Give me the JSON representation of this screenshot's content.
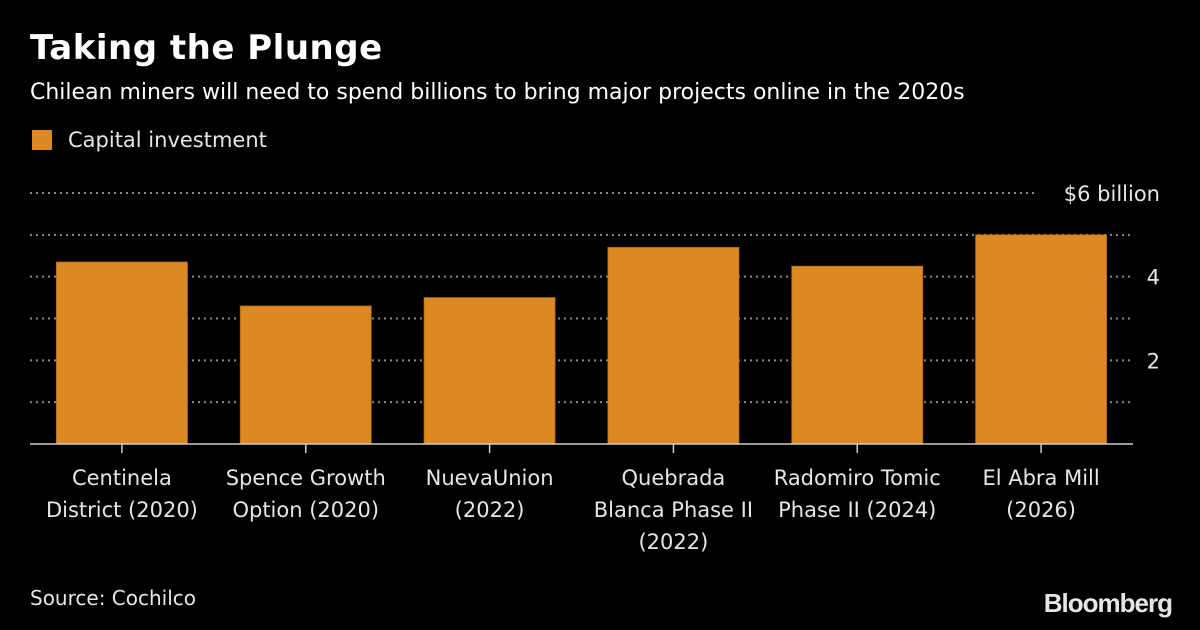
{
  "header": {
    "title": "Taking the Plunge",
    "subtitle": "Chilean miners will need to spend billions to bring major projects online in the 2020s"
  },
  "footer": {
    "source": "Source: Cochilco",
    "logo": "Bloomberg"
  },
  "chart_data": {
    "type": "bar",
    "title": "Taking the Plunge",
    "subtitle": "Chilean miners will need to spend billions to bring major projects online in the 2020s",
    "xlabel": "",
    "ylabel": "$ billion",
    "ylim": [
      0,
      6
    ],
    "yticks": [
      0,
      1,
      2,
      3,
      4,
      5,
      6
    ],
    "ytick_labels": [
      {
        "value": 2,
        "label": "2"
      },
      {
        "value": 4,
        "label": "4"
      },
      {
        "value": 6,
        "label": "$6 billion"
      }
    ],
    "grid": true,
    "legend": {
      "placement": "top-left",
      "entries": [
        {
          "name": "Capital investment",
          "color": "#dc8924"
        }
      ]
    },
    "categories": [
      [
        "Centinela",
        "District (2020)"
      ],
      [
        "Spence Growth",
        "Option (2020)"
      ],
      [
        "NuevaUnion",
        "(2022)"
      ],
      [
        "Quebrada",
        "Blanca Phase II",
        "(2022)"
      ],
      [
        "Radomiro Tomic",
        "Phase II (2024)"
      ],
      [
        "El Abra Mill",
        "(2026)"
      ]
    ],
    "series": [
      {
        "name": "Capital investment",
        "color": "#dc8924",
        "values": [
          4.35,
          3.3,
          3.5,
          4.7,
          4.25,
          5.0
        ]
      }
    ]
  }
}
